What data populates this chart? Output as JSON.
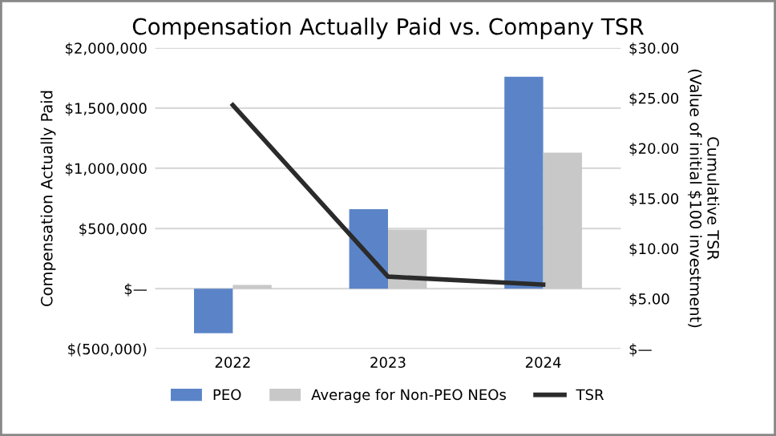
{
  "chart_data": {
    "type": "bar",
    "title": "Compensation Actually Paid vs. Company TSR",
    "categories": [
      "2022",
      "2023",
      "2024"
    ],
    "series": [
      {
        "name": "PEO",
        "color": "#5b84c8",
        "values": [
          -370000,
          660000,
          1760000
        ]
      },
      {
        "name": "Average for Non-PEO NEOs",
        "color": "#c8c8c8",
        "values": [
          30000,
          490000,
          1130000
        ]
      },
      {
        "name": "TSR",
        "type": "line",
        "axis": "y2",
        "color": "#2b2b2b",
        "values": [
          24.3,
          7.2,
          6.4
        ]
      }
    ],
    "ylabel": "Compensation Actually Paid",
    "y2label": "Cumulative TSR\n(Value of initial $100 investment)",
    "ylim": [
      -500000,
      2000000
    ],
    "yticks": [
      {
        "value": -500000,
        "label": "$(500,000)"
      },
      {
        "value": 0,
        "label": "$—"
      },
      {
        "value": 500000,
        "label": "$500,000"
      },
      {
        "value": 1000000,
        "label": "$1,000,000"
      },
      {
        "value": 1500000,
        "label": "$1,500,000"
      },
      {
        "value": 2000000,
        "label": "$2,000,000"
      }
    ],
    "y2lim": [
      0,
      30
    ],
    "y2ticks": [
      {
        "value": 0,
        "label": "$—"
      },
      {
        "value": 5,
        "label": "$5.00"
      },
      {
        "value": 10,
        "label": "$10.00"
      },
      {
        "value": 15,
        "label": "$15.00"
      },
      {
        "value": 20,
        "label": "$20.00"
      },
      {
        "value": 25,
        "label": "$25.00"
      },
      {
        "value": 30,
        "label": "$30.00"
      }
    ],
    "grid": "y",
    "legend": "bottom"
  }
}
